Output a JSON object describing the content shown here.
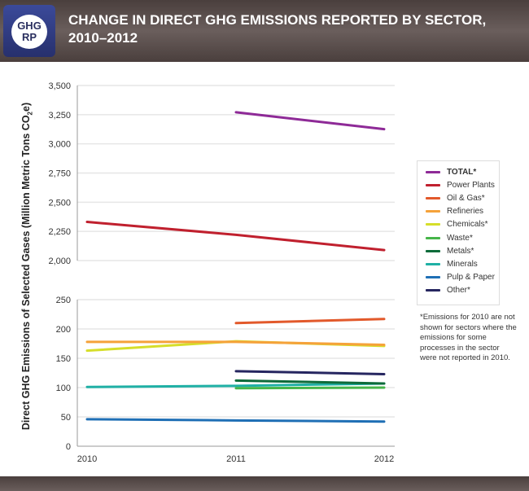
{
  "header": {
    "logo_text": "GHG RP",
    "title_line1": "CHANGE IN DIRECT GHG EMISSIONS REPORTED BY SECTOR,",
    "title_line2": "2010–2012"
  },
  "note": "*Emissions for 2010 are not shown for sectors where the emissions for some processes in the sector were not reported in 2010.",
  "chart_data": {
    "type": "line",
    "title": "CHANGE IN DIRECT GHG EMISSIONS REPORTED BY SECTOR, 2010–2012",
    "ylabel": "Direct GHG Emissions of Selected Gases (Million Metric Tons CO2e)",
    "categories": [
      "2010",
      "2011",
      "2012"
    ],
    "y_axis_broken": true,
    "ylim_upper": [
      2000,
      3500
    ],
    "ylim_lower": [
      0,
      250
    ],
    "yticks_upper": [
      "2,000",
      "2,250",
      "2,500",
      "2,750",
      "3,000",
      "3,250",
      "3,500"
    ],
    "yticks_lower": [
      "0",
      "50",
      "100",
      "150",
      "200",
      "250"
    ],
    "grid": true,
    "legend_position": "right",
    "series": [
      {
        "name": "TOTAL*",
        "color": "#8e2a97",
        "values": [
          null,
          3271,
          3126
        ]
      },
      {
        "name": "Power Plants",
        "color": "#c0202e",
        "values": [
          2331,
          2221,
          2090
        ]
      },
      {
        "name": "Oil & Gas*",
        "color": "#e2592b",
        "values": [
          null,
          210,
          217
        ]
      },
      {
        "name": "Refineries",
        "color": "#f5a23a",
        "values": [
          178,
          178,
          173
        ]
      },
      {
        "name": "Chemicals*",
        "color": "#d6de2a",
        "values": [
          163,
          179,
          171
        ]
      },
      {
        "name": "Waste*",
        "color": "#46b549",
        "values": [
          null,
          99,
          100
        ]
      },
      {
        "name": "Metals*",
        "color": "#0d6b3a",
        "values": [
          null,
          112,
          107
        ]
      },
      {
        "name": "Minerals",
        "color": "#1fb0a5",
        "values": [
          101,
          103,
          107
        ]
      },
      {
        "name": "Pulp & Paper",
        "color": "#1f6fb5",
        "values": [
          46,
          44,
          42
        ]
      },
      {
        "name": "Other*",
        "color": "#262660",
        "values": [
          null,
          128,
          123
        ]
      }
    ]
  }
}
